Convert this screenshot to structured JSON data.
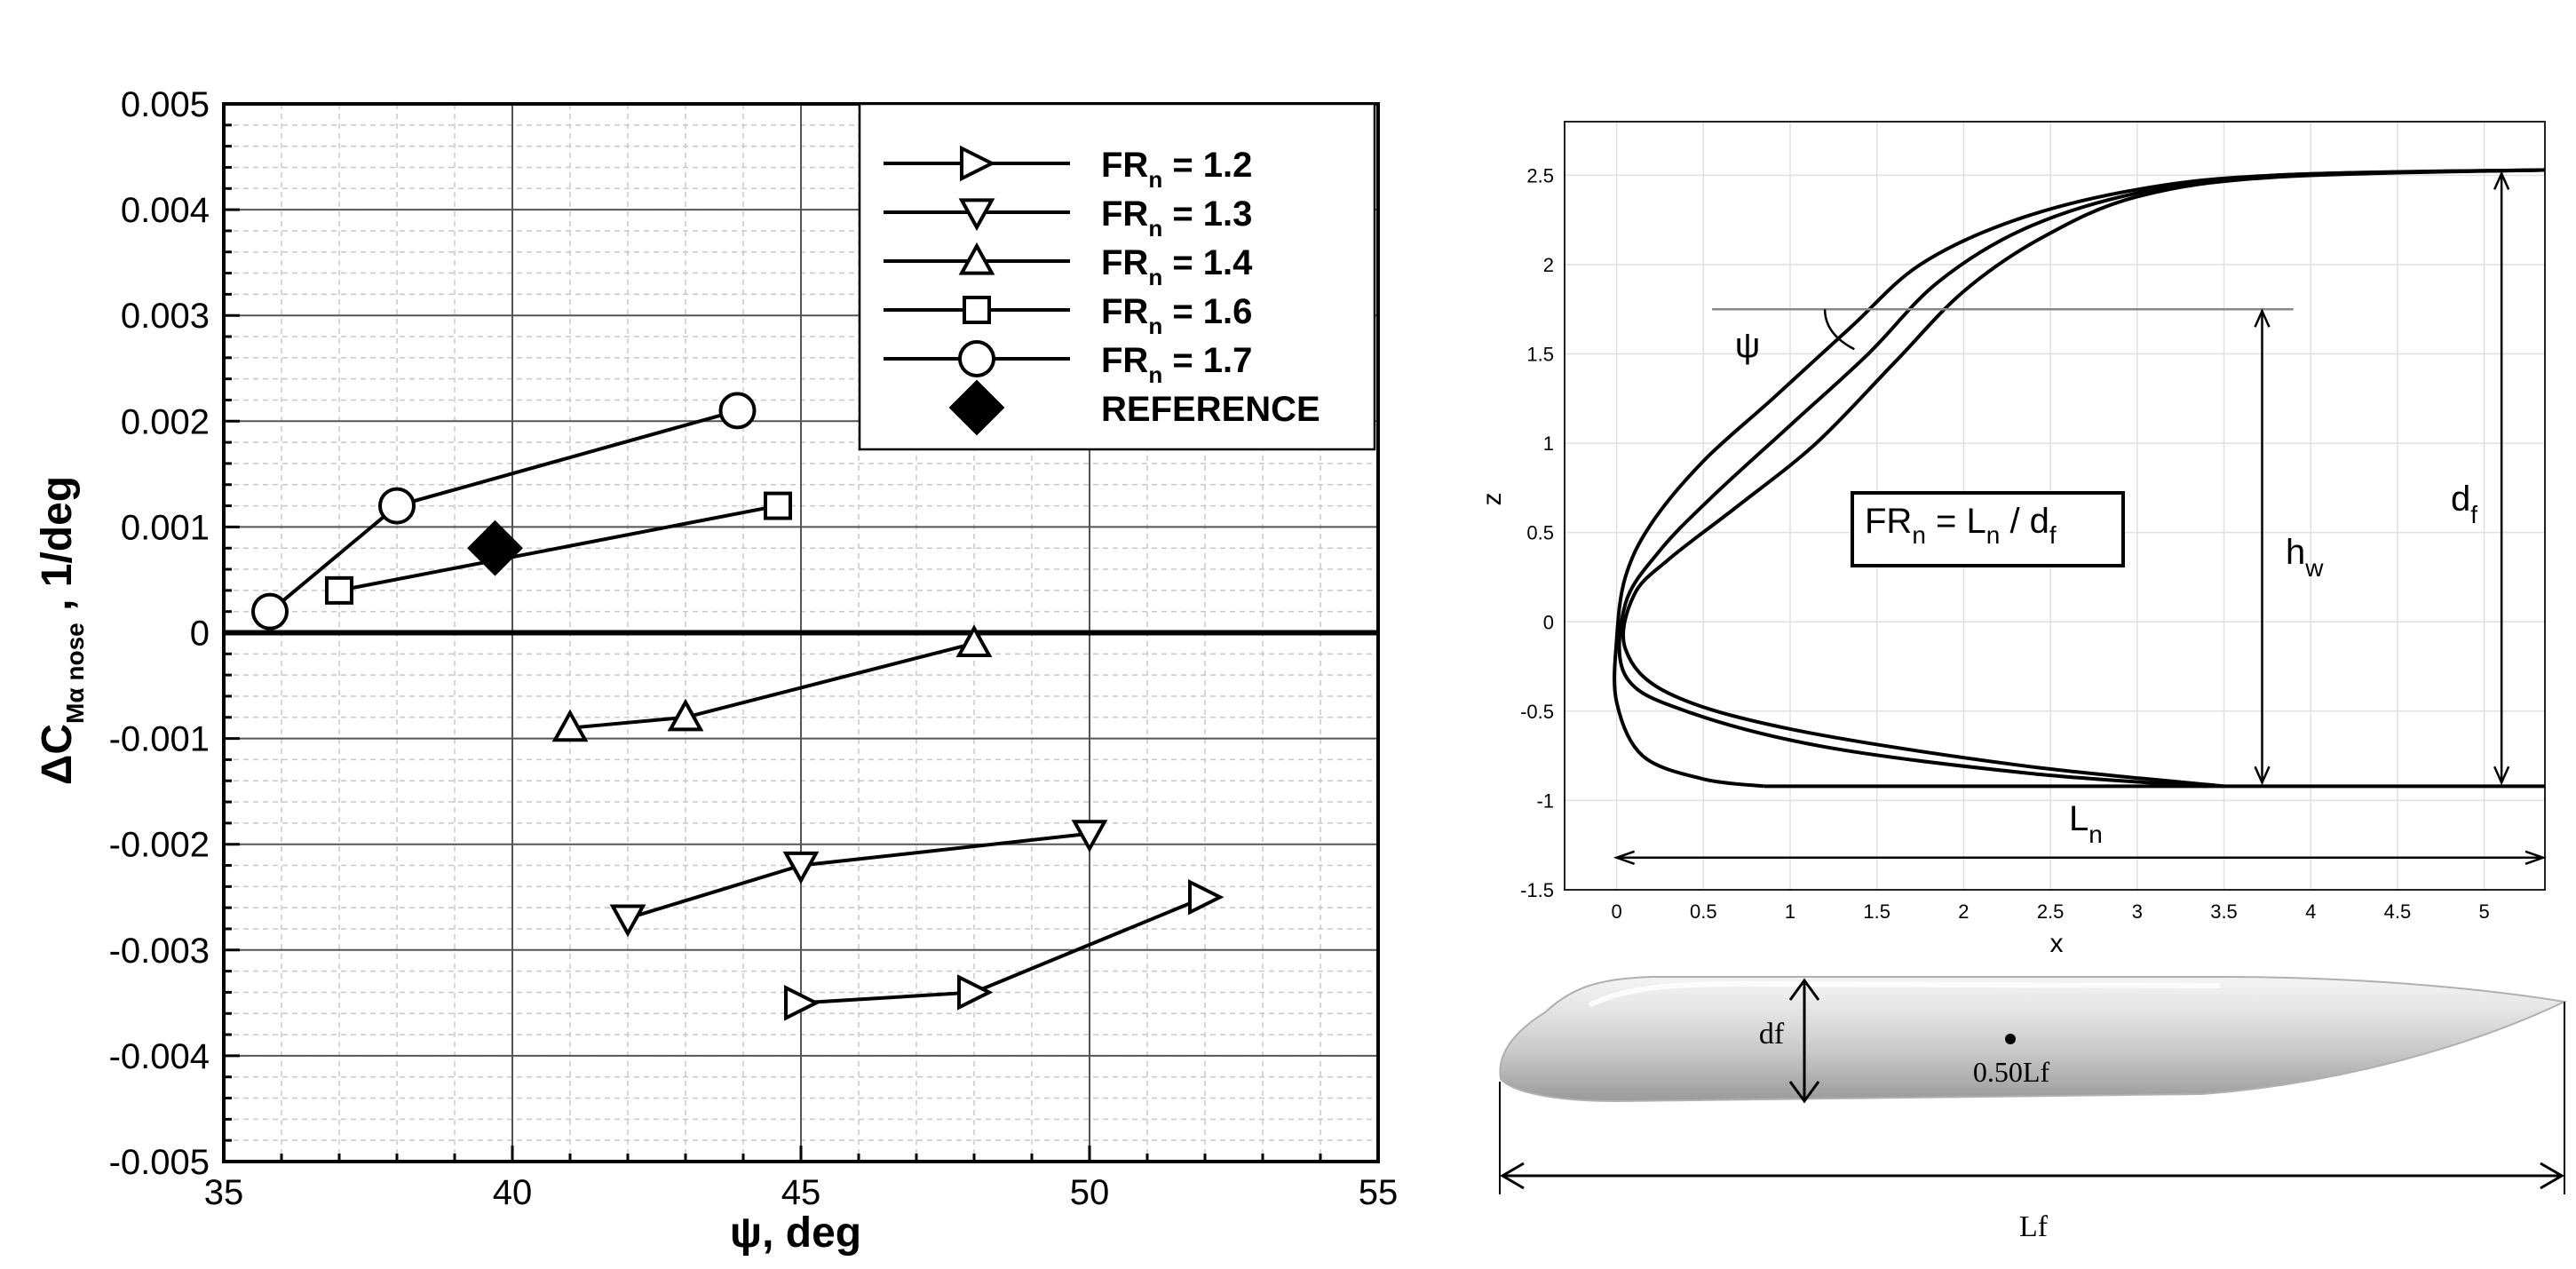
{
  "chart_data": [
    {
      "type": "line",
      "title": "",
      "xlabel": "ψ, deg",
      "ylabel": {
        "main": "ΔC",
        "sub": "Mα nose",
        "tail": " , 1/deg"
      },
      "xlim": [
        35,
        55
      ],
      "ylim": [
        -0.005,
        0.005
      ],
      "xticks": [
        35,
        40,
        45,
        50,
        55
      ],
      "yticks": [
        -0.005,
        -0.004,
        -0.003,
        -0.002,
        -0.001,
        0,
        0.001,
        0.002,
        0.003,
        0.004,
        0.005
      ],
      "xtick_labels": [
        "35",
        "40",
        "45",
        "50",
        "55"
      ],
      "ytick_labels": [
        "-0.005",
        "-0.004",
        "-0.003",
        "-0.002",
        "-0.001",
        "0",
        "0.001",
        "0.002",
        "0.003",
        "0.004",
        "0.005"
      ],
      "grid": true,
      "legend_position": "top-right",
      "series": [
        {
          "name": "FR_n = 1.2",
          "name_main": "FR",
          "name_sub": "n",
          "name_tail": " = 1.2",
          "marker": "triangle-right",
          "x": [
            45,
            48,
            52
          ],
          "y": [
            -0.0035,
            -0.0034,
            -0.0025
          ]
        },
        {
          "name": "FR_n = 1.3",
          "name_main": "FR",
          "name_sub": "n",
          "name_tail": " = 1.3",
          "marker": "triangle-down",
          "x": [
            42,
            45,
            50
          ],
          "y": [
            -0.0027,
            -0.0022,
            -0.0019
          ]
        },
        {
          "name": "FR_n = 1.4",
          "name_main": "FR",
          "name_sub": "n",
          "name_tail": " = 1.4",
          "marker": "triangle-up",
          "x": [
            41,
            43,
            48
          ],
          "y": [
            -0.0009,
            -0.0008,
            -0.0001
          ]
        },
        {
          "name": "FR_n = 1.6",
          "name_main": "FR",
          "name_sub": "n",
          "name_tail": " = 1.6",
          "marker": "square",
          "x": [
            37,
            44.6
          ],
          "y": [
            0.0004,
            0.0012
          ]
        },
        {
          "name": "FR_n = 1.7",
          "name_main": "FR",
          "name_sub": "n",
          "name_tail": " = 1.7",
          "marker": "circle",
          "x": [
            35.8,
            38,
            43.9
          ],
          "y": [
            0.0002,
            0.0012,
            0.0021
          ]
        }
      ],
      "reference": {
        "name": "REFERENCE",
        "marker": "diamond-filled",
        "x": 39.7,
        "y": 0.0008
      }
    },
    {
      "type": "line",
      "title": "",
      "xlabel": "x",
      "ylabel": "z",
      "xlim": [
        -0.3,
        5.35
      ],
      "ylim": [
        -1.5,
        2.8
      ],
      "xticks": [
        0,
        0.5,
        1,
        1.5,
        2,
        2.5,
        3,
        3.5,
        4,
        4.5,
        5
      ],
      "yticks": [
        -1.5,
        -1,
        -0.5,
        0,
        0.5,
        1,
        1.5,
        2,
        2.5
      ],
      "xtick_labels": [
        "0",
        "0.5",
        "1",
        "1.5",
        "2",
        "2.5",
        "3",
        "3.5",
        "4",
        "4.5",
        "5"
      ],
      "ytick_labels": [
        "-1.5",
        "-1",
        "-0.5",
        "0",
        "0.5",
        "1",
        "1.5",
        "2",
        "2.5"
      ],
      "grid": true,
      "nose_profiles": [
        [
          [
            0.85,
            -0.92
          ],
          [
            0.5,
            -0.88
          ],
          [
            0.15,
            -0.75
          ],
          [
            0.0,
            -0.45
          ],
          [
            0.0,
            -0.1
          ],
          [
            0.05,
            0.25
          ],
          [
            0.2,
            0.55
          ],
          [
            0.5,
            0.9
          ],
          [
            0.9,
            1.25
          ],
          [
            1.35,
            1.65
          ],
          [
            1.75,
            2.0
          ],
          [
            2.3,
            2.25
          ],
          [
            3.0,
            2.42
          ],
          [
            3.8,
            2.5
          ],
          [
            5.35,
            2.53
          ]
        ],
        [
          [
            3.4,
            -0.92
          ],
          [
            2.4,
            -0.85
          ],
          [
            1.2,
            -0.7
          ],
          [
            0.4,
            -0.5
          ],
          [
            0.05,
            -0.3
          ],
          [
            0.05,
            0.1
          ],
          [
            0.25,
            0.4
          ],
          [
            0.55,
            0.7
          ],
          [
            1.0,
            1.1
          ],
          [
            1.45,
            1.5
          ],
          [
            1.85,
            1.9
          ],
          [
            2.35,
            2.2
          ],
          [
            3.0,
            2.4
          ],
          [
            3.8,
            2.5
          ],
          [
            5.35,
            2.53
          ]
        ],
        [
          [
            3.5,
            -0.92
          ],
          [
            2.3,
            -0.8
          ],
          [
            1.0,
            -0.6
          ],
          [
            0.3,
            -0.4
          ],
          [
            0.05,
            -0.15
          ],
          [
            0.1,
            0.15
          ],
          [
            0.3,
            0.35
          ],
          [
            0.7,
            0.65
          ],
          [
            1.15,
            1.0
          ],
          [
            1.6,
            1.45
          ],
          [
            2.0,
            1.85
          ],
          [
            2.45,
            2.15
          ],
          [
            3.0,
            2.38
          ],
          [
            3.8,
            2.49
          ],
          [
            5.35,
            2.53
          ]
        ]
      ],
      "waterline_z": 1.75,
      "annotations": {
        "psi": "ψ",
        "formula": {
          "a": "FR",
          "a_sub": "n",
          "b": " = L",
          "b_sub": "n",
          "c": " / d",
          "c_sub": "f"
        },
        "hw": {
          "main": "h",
          "sub": "w"
        },
        "df": {
          "main": "d",
          "sub": "f"
        },
        "ln": {
          "main": "L",
          "sub": "n"
        }
      }
    }
  ],
  "fuselage": {
    "df_label": "df",
    "cg_label": "0.50Lf",
    "lf_label": "Lf"
  }
}
